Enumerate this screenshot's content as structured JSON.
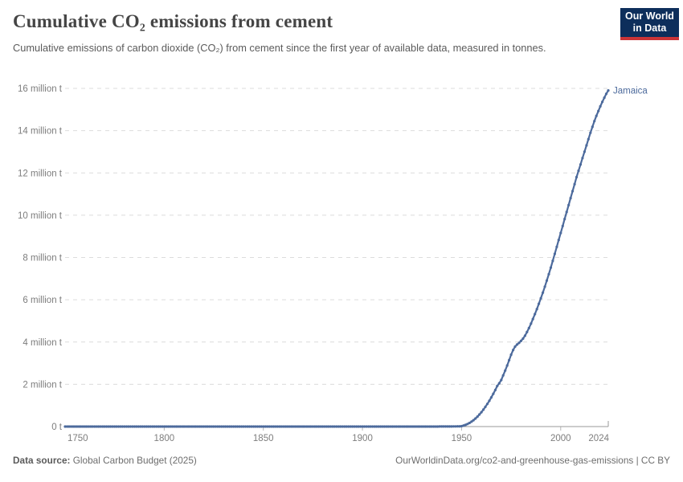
{
  "header": {
    "title": "Cumulative CO₂ emissions from cement",
    "subtitle": "Cumulative emissions of carbon dioxide (CO₂) from cement since the first year of available data, measured in tonnes.",
    "logo_line1": "Our World",
    "logo_line2": "in Data"
  },
  "chart_data": {
    "type": "line",
    "title": "Cumulative CO₂ emissions from cement",
    "xlabel": "",
    "ylabel": "",
    "values_unit": "million tonnes",
    "xlim": [
      1750,
      2024
    ],
    "ylim_millions": [
      0,
      16
    ],
    "grid": "dashed-horizontal",
    "legend_position": "end-of-line-label",
    "x_ticks": [
      1750,
      1800,
      1850,
      1900,
      1950,
      2000,
      2024
    ],
    "y_ticks": {
      "values": [
        0,
        2,
        4,
        6,
        8,
        10,
        12,
        14,
        16
      ],
      "labels": [
        "0 t",
        "2 million t",
        "4 million t",
        "6 million t",
        "8 million t",
        "10 million t",
        "12 million t",
        "14 million t",
        "16 million t"
      ]
    },
    "series": [
      {
        "name": "Jamaica",
        "color": "#4C6A9C",
        "anchor_points_year_milliont": [
          [
            1750,
            0
          ],
          [
            1900,
            0
          ],
          [
            1940,
            0.002
          ],
          [
            1946,
            0.006
          ],
          [
            1949,
            0.012
          ],
          [
            1950,
            0.02
          ],
          [
            1951,
            0.05
          ],
          [
            1952,
            0.08
          ],
          [
            1953,
            0.12
          ],
          [
            1954,
            0.17
          ],
          [
            1955,
            0.23
          ],
          [
            1956,
            0.3
          ],
          [
            1957,
            0.38
          ],
          [
            1958,
            0.47
          ],
          [
            1959,
            0.57
          ],
          [
            1960,
            0.68
          ],
          [
            1961,
            0.8
          ],
          [
            1962,
            0.93
          ],
          [
            1963,
            1.07
          ],
          [
            1964,
            1.22
          ],
          [
            1965,
            1.38
          ],
          [
            1966,
            1.55
          ],
          [
            1967,
            1.73
          ],
          [
            1968,
            1.92
          ],
          [
            1969,
            2.05
          ],
          [
            1970,
            2.2
          ],
          [
            1971,
            2.42
          ],
          [
            1972,
            2.65
          ],
          [
            1973,
            2.89
          ],
          [
            1974,
            3.14
          ],
          [
            1975,
            3.4
          ],
          [
            1976,
            3.62
          ],
          [
            1977,
            3.78
          ],
          [
            1978,
            3.88
          ],
          [
            1979,
            3.96
          ],
          [
            1980,
            4.05
          ],
          [
            1981,
            4.16
          ],
          [
            1982,
            4.3
          ],
          [
            1983,
            4.47
          ],
          [
            1984,
            4.66
          ],
          [
            1985,
            4.87
          ],
          [
            1986,
            5.09
          ],
          [
            1987,
            5.32
          ],
          [
            1988,
            5.56
          ],
          [
            1989,
            5.81
          ],
          [
            1990,
            6.07
          ],
          [
            1991,
            6.34
          ],
          [
            1992,
            6.62
          ],
          [
            1993,
            6.91
          ],
          [
            1994,
            7.21
          ],
          [
            1995,
            7.52
          ],
          [
            1996,
            7.84
          ],
          [
            1997,
            8.17
          ],
          [
            1998,
            8.5
          ],
          [
            1999,
            8.83
          ],
          [
            2000,
            9.16
          ],
          [
            2001,
            9.49
          ],
          [
            2002,
            9.82
          ],
          [
            2003,
            10.15
          ],
          [
            2004,
            10.48
          ],
          [
            2005,
            10.81
          ],
          [
            2006,
            11.14
          ],
          [
            2007,
            11.47
          ],
          [
            2008,
            11.8
          ],
          [
            2009,
            12.1
          ],
          [
            2010,
            12.4
          ],
          [
            2011,
            12.7
          ],
          [
            2012,
            13.0
          ],
          [
            2013,
            13.3
          ],
          [
            2014,
            13.6
          ],
          [
            2015,
            13.9
          ],
          [
            2016,
            14.18
          ],
          [
            2017,
            14.45
          ],
          [
            2018,
            14.7
          ],
          [
            2019,
            14.93
          ],
          [
            2020,
            15.15
          ],
          [
            2021,
            15.36
          ],
          [
            2022,
            15.56
          ],
          [
            2023,
            15.74
          ],
          [
            2024,
            15.9
          ]
        ]
      }
    ],
    "colors": {
      "line": "#4C6A9C",
      "gridline": "#dcdcdc",
      "axis": "#999999",
      "tick": "#b8b8b8",
      "tick_label": "#7d7d7d"
    }
  },
  "footer": {
    "source_label": "Data source:",
    "source_value": " Global Carbon Budget (2025)",
    "link": "OurWorldinData.org/co2-and-greenhouse-gas-emissions | CC BY"
  }
}
